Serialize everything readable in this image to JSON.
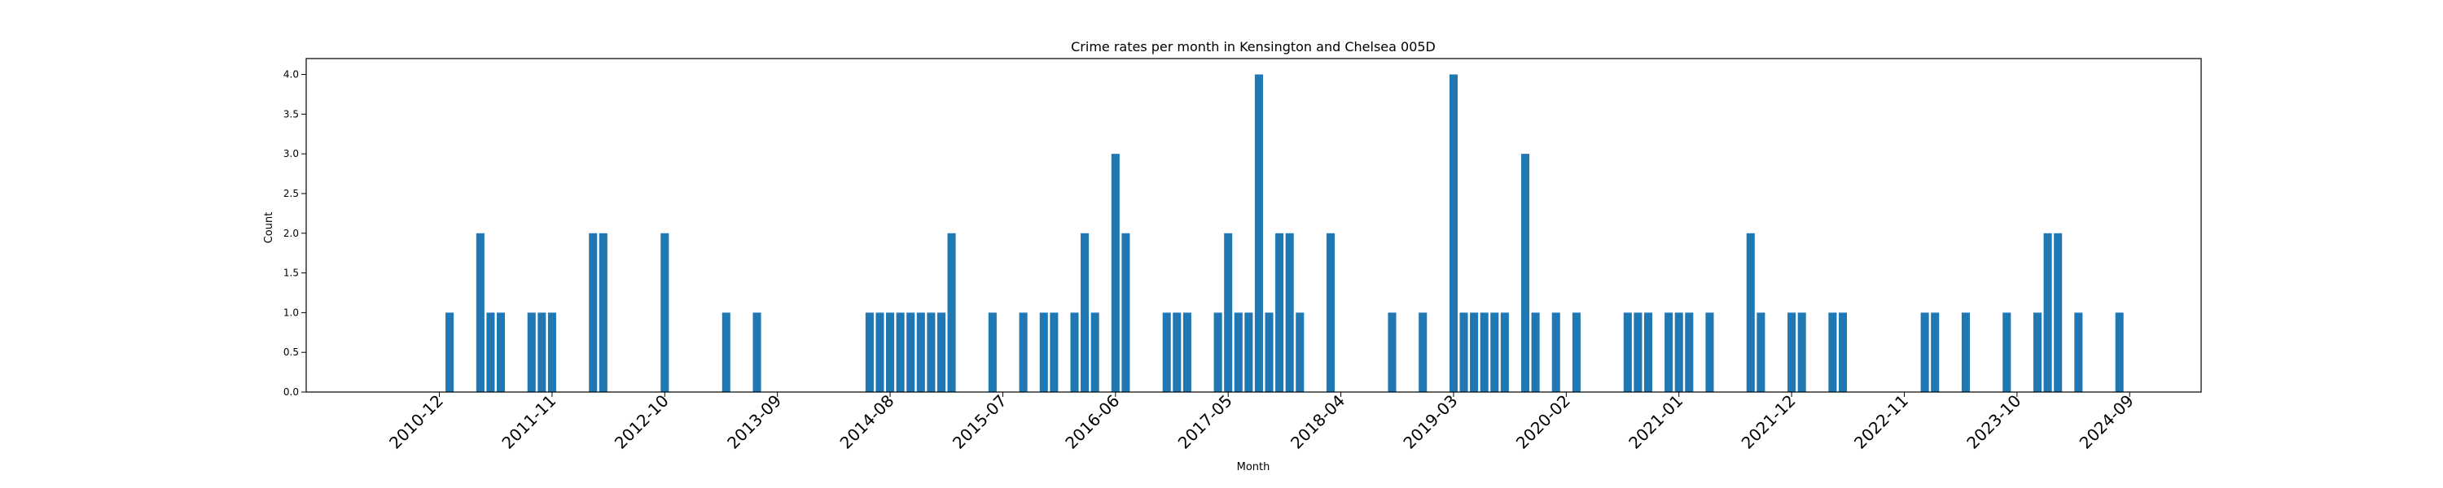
{
  "chart_data": {
    "type": "bar",
    "title": "Crime rates per month in Kensington and Chelsea 005D",
    "xlabel": "Month",
    "ylabel": "Count",
    "ylim": [
      0,
      4.2
    ],
    "y_ticks": [
      "0.0",
      "0.5",
      "1.0",
      "1.5",
      "2.0",
      "2.5",
      "3.0",
      "3.5",
      "4.0"
    ],
    "x_ticks": [
      {
        "label": "2010-12",
        "month": "2010-12"
      },
      {
        "label": "2011-11",
        "month": "2011-11"
      },
      {
        "label": "2012-10",
        "month": "2012-10"
      },
      {
        "label": "2013-09",
        "month": "2013-09"
      },
      {
        "label": "2014-08",
        "month": "2014-08"
      },
      {
        "label": "2015-07",
        "month": "2015-07"
      },
      {
        "label": "2016-06",
        "month": "2016-06"
      },
      {
        "label": "2017-05",
        "month": "2017-05"
      },
      {
        "label": "2018-04",
        "month": "2018-04"
      },
      {
        "label": "2019-03",
        "month": "2019-03"
      },
      {
        "label": "2020-02",
        "month": "2020-02"
      },
      {
        "label": "2021-01",
        "month": "2021-01"
      },
      {
        "label": "2021-12",
        "month": "2021-12"
      },
      {
        "label": "2022-11",
        "month": "2022-11"
      },
      {
        "label": "2023-10",
        "month": "2023-10"
      },
      {
        "label": "2024-09",
        "month": "2024-09"
      }
    ],
    "bar_color": "#1f77b4",
    "grid": false,
    "categories": [
      "2011-01",
      "2011-04",
      "2011-05",
      "2011-06",
      "2011-09",
      "2011-10",
      "2011-11",
      "2012-03",
      "2012-04",
      "2012-10",
      "2013-04",
      "2013-07",
      "2014-06",
      "2014-07",
      "2014-08",
      "2014-09",
      "2014-10",
      "2014-11",
      "2014-12",
      "2015-01",
      "2015-02",
      "2015-06",
      "2015-09",
      "2015-11",
      "2015-12",
      "2016-02",
      "2016-03",
      "2016-04",
      "2016-06",
      "2016-07",
      "2016-11",
      "2016-12",
      "2017-01",
      "2017-04",
      "2017-05",
      "2017-06",
      "2017-07",
      "2017-08",
      "2017-09",
      "2017-10",
      "2017-11",
      "2017-12",
      "2018-03",
      "2018-09",
      "2018-12",
      "2019-03",
      "2019-04",
      "2019-05",
      "2019-06",
      "2019-07",
      "2019-08",
      "2019-10",
      "2019-11",
      "2020-01",
      "2020-03",
      "2020-08",
      "2020-09",
      "2020-10",
      "2020-12",
      "2021-01",
      "2021-02",
      "2021-04",
      "2021-08",
      "2021-09",
      "2021-12",
      "2022-01",
      "2022-04",
      "2022-05",
      "2023-01",
      "2023-02",
      "2023-05",
      "2023-09",
      "2023-12",
      "2024-01",
      "2024-02",
      "2024-04",
      "2024-08"
    ],
    "values": [
      1,
      2,
      1,
      1,
      1,
      1,
      1,
      2,
      2,
      2,
      1,
      1,
      1,
      1,
      1,
      1,
      1,
      1,
      1,
      1,
      2,
      1,
      1,
      1,
      1,
      1,
      2,
      1,
      3,
      2,
      1,
      1,
      1,
      1,
      2,
      1,
      1,
      4,
      1,
      2,
      2,
      1,
      2,
      1,
      1,
      4,
      1,
      1,
      1,
      1,
      1,
      3,
      1,
      1,
      1,
      1,
      1,
      1,
      1,
      1,
      1,
      1,
      2,
      1,
      1,
      1,
      1,
      1,
      1,
      1,
      1,
      1,
      1,
      2,
      2,
      1,
      1
    ]
  }
}
